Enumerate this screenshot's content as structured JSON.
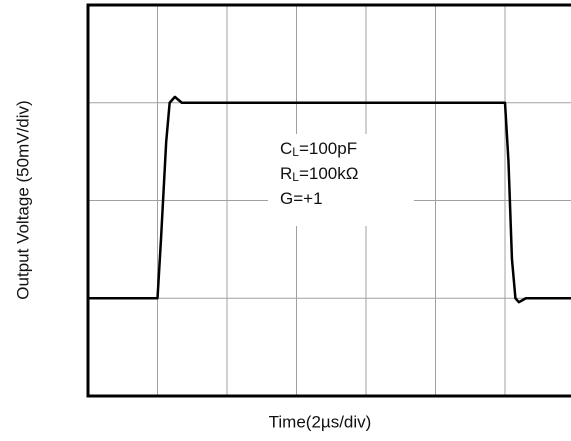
{
  "chart_data": {
    "type": "line",
    "xlabel": "Time(2µs/div)",
    "ylabel": "Output Voltage (50mV/div)",
    "annotations": [
      {
        "symbol": "C",
        "subscript": "L",
        "value": "=100pF"
      },
      {
        "symbol": "R",
        "subscript": "L",
        "value": "=100kΩ"
      },
      {
        "symbol": "G",
        "value": "=+1"
      }
    ],
    "x": [
      0,
      2.0,
      2.1,
      2.25,
      2.35,
      2.5,
      2.7,
      12.0,
      12.1,
      12.2,
      12.3,
      12.4,
      12.6,
      14
    ],
    "series": [
      {
        "color": "#000000",
        "values": [
          50,
          50,
          80,
          130,
          150,
          153,
          150,
          150,
          120,
          70,
          50,
          48,
          50,
          50
        ]
      }
    ],
    "xlim": [
      0,
      14
    ],
    "xticks": [
      2,
      4,
      6,
      8,
      10,
      12
    ],
    "ylim": [
      0,
      200
    ],
    "yticks": [
      50,
      100,
      150
    ],
    "grid": true
  }
}
